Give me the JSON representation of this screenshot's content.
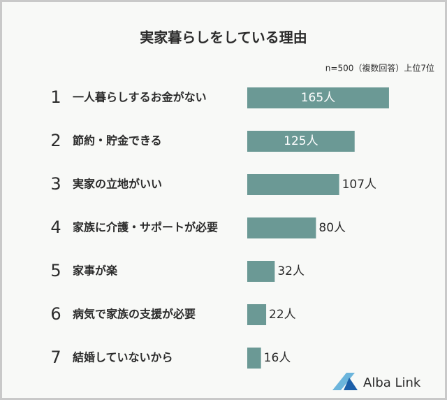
{
  "chart_data": {
    "type": "bar",
    "orientation": "horizontal",
    "title": "実家暮らしをしている理由",
    "subtitle": "n=500（複数回答）上位7位",
    "ranks": [
      1,
      2,
      3,
      4,
      5,
      6,
      7
    ],
    "categories": [
      "一人暮らしするお金がない",
      "節約・貯金できる",
      "実家の立地がいい",
      "家族に介護・サポートが必要",
      "家事が楽",
      "病気で家族の支援が必要",
      "結婚していないから"
    ],
    "values": [
      165,
      125,
      107,
      80,
      32,
      22,
      16
    ],
    "value_labels": [
      "165人",
      "125人",
      "107人",
      "80人",
      "32人",
      "22人",
      "16人"
    ],
    "color": "#6b9995",
    "brand": "Alba Link"
  }
}
